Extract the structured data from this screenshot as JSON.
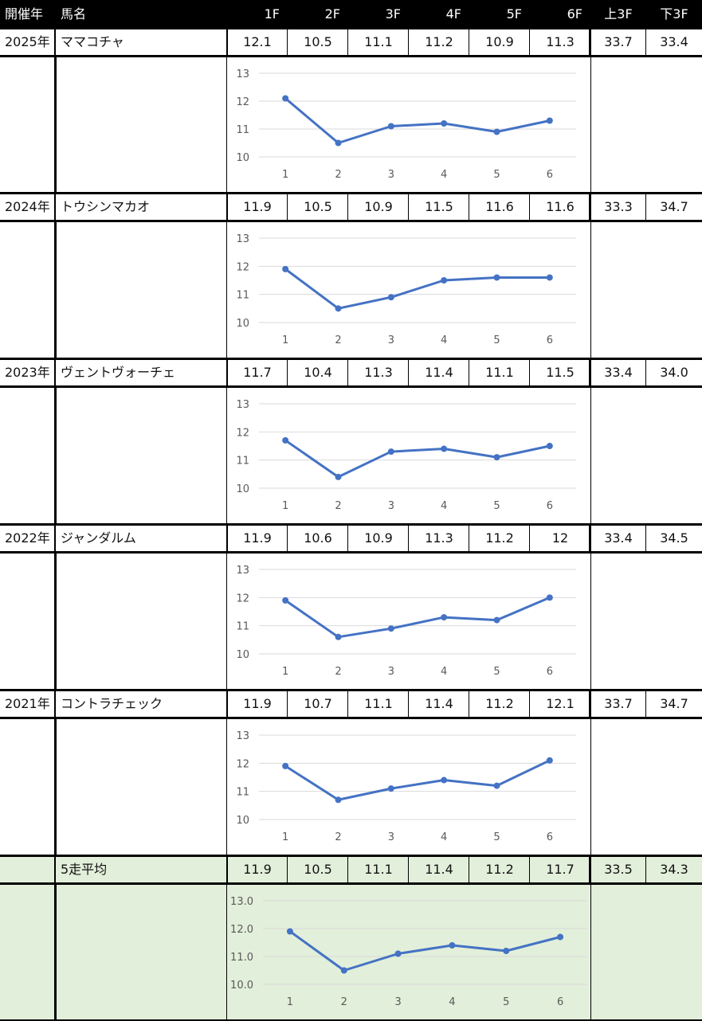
{
  "header": {
    "year": "開催年",
    "name": "馬名",
    "splits": [
      "1F",
      "2F",
      "3F",
      "4F",
      "5F",
      "6F"
    ],
    "first3": "上3F",
    "last3": "下3F"
  },
  "rows": [
    {
      "year": "2025年",
      "name": "ママコチャ",
      "splits": [
        "12.1",
        "10.5",
        "11.1",
        "11.2",
        "10.9",
        "11.3"
      ],
      "first3": "33.7",
      "last3": "33.4"
    },
    {
      "year": "2024年",
      "name": "トウシンマカオ",
      "splits": [
        "11.9",
        "10.5",
        "10.9",
        "11.5",
        "11.6",
        "11.6"
      ],
      "first3": "33.3",
      "last3": "34.7"
    },
    {
      "year": "2023年",
      "name": "ヴェントヴォーチェ",
      "splits": [
        "11.7",
        "10.4",
        "11.3",
        "11.4",
        "11.1",
        "11.5"
      ],
      "first3": "33.4",
      "last3": "34.0"
    },
    {
      "year": "2022年",
      "name": "ジャンダルム",
      "splits": [
        "11.9",
        "10.6",
        "10.9",
        "11.3",
        "11.2",
        "12"
      ],
      "first3": "33.4",
      "last3": "34.5"
    },
    {
      "year": "2021年",
      "name": "コントラチェック",
      "splits": [
        "11.9",
        "10.7",
        "11.1",
        "11.4",
        "11.2",
        "12.1"
      ],
      "first3": "33.7",
      "last3": "34.7"
    }
  ],
  "average": {
    "year": "",
    "name": "5走平均",
    "splits": [
      "11.9",
      "10.5",
      "11.1",
      "11.4",
      "11.2",
      "11.7"
    ],
    "first3": "33.5",
    "last3": "34.3"
  },
  "colors": {
    "line": "#4472c4",
    "grid": "#d9d9d9",
    "average_bg": "#e2efda"
  },
  "chart_data": [
    {
      "type": "line",
      "x": [
        1,
        2,
        3,
        4,
        5,
        6
      ],
      "series": [
        {
          "values": [
            12.1,
            10.5,
            11.1,
            11.2,
            10.9,
            11.3
          ]
        }
      ],
      "ylim": [
        10,
        13
      ],
      "yticks": [
        "10",
        "11",
        "12",
        "13"
      ],
      "grid": true
    },
    {
      "type": "line",
      "x": [
        1,
        2,
        3,
        4,
        5,
        6
      ],
      "series": [
        {
          "values": [
            11.9,
            10.5,
            10.9,
            11.5,
            11.6,
            11.6
          ]
        }
      ],
      "ylim": [
        10,
        13
      ],
      "yticks": [
        "10",
        "11",
        "12",
        "13"
      ],
      "grid": true
    },
    {
      "type": "line",
      "x": [
        1,
        2,
        3,
        4,
        5,
        6
      ],
      "series": [
        {
          "values": [
            11.7,
            10.4,
            11.3,
            11.4,
            11.1,
            11.5
          ]
        }
      ],
      "ylim": [
        10,
        13
      ],
      "yticks": [
        "10",
        "11",
        "12",
        "13"
      ],
      "grid": true
    },
    {
      "type": "line",
      "x": [
        1,
        2,
        3,
        4,
        5,
        6
      ],
      "series": [
        {
          "values": [
            11.9,
            10.6,
            10.9,
            11.3,
            11.2,
            12.0
          ]
        }
      ],
      "ylim": [
        10,
        13
      ],
      "yticks": [
        "10",
        "11",
        "12",
        "13"
      ],
      "grid": true
    },
    {
      "type": "line",
      "x": [
        1,
        2,
        3,
        4,
        5,
        6
      ],
      "series": [
        {
          "values": [
            11.9,
            10.7,
            11.1,
            11.4,
            11.2,
            12.1
          ]
        }
      ],
      "ylim": [
        10,
        13
      ],
      "yticks": [
        "10",
        "11",
        "12",
        "13"
      ],
      "grid": true
    },
    {
      "type": "line",
      "x": [
        1,
        2,
        3,
        4,
        5,
        6
      ],
      "series": [
        {
          "values": [
            11.9,
            10.5,
            11.1,
            11.4,
            11.2,
            11.7
          ]
        }
      ],
      "ylim": [
        10,
        13
      ],
      "yticks": [
        "10.0",
        "11.0",
        "12.0",
        "13.0"
      ],
      "grid": true
    }
  ]
}
